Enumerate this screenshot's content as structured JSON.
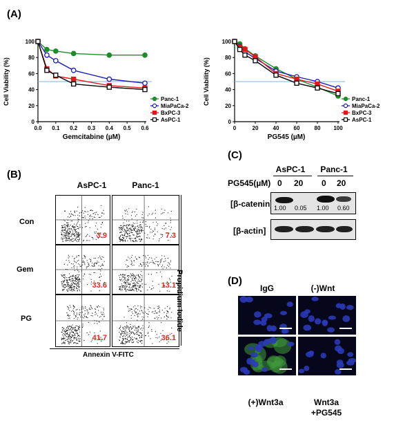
{
  "panels": {
    "a": "(A)",
    "b": "(B)",
    "c": "(C)",
    "d": "(D)"
  },
  "chart_data": [
    {
      "type": "line",
      "xlabel": "Gemcitabine (µM)",
      "ylabel": "Cell Viability (%)",
      "xlim": [
        0,
        0.6
      ],
      "ylim": [
        0,
        100
      ],
      "xticks": [
        "0.0",
        "0.1",
        "0.2",
        "0.3",
        "0.4",
        "0.5",
        "0.6"
      ],
      "yticks": [
        "0",
        "20",
        "40",
        "60",
        "80",
        "100"
      ],
      "reference_line": 50,
      "x": [
        0,
        0.05,
        0.1,
        0.2,
        0.4,
        0.6
      ],
      "series": [
        {
          "name": "Panc-1",
          "color": "#1e8c2a",
          "marker": "filled-circle",
          "values": [
            100,
            90,
            88,
            85,
            83,
            83
          ]
        },
        {
          "name": "MiaPaCa-2",
          "color": "#1a1ab5",
          "marker": "open-circle",
          "values": [
            100,
            83,
            76,
            64,
            53,
            48
          ]
        },
        {
          "name": "BxPC-3",
          "color": "#e01818",
          "marker": "filled-square",
          "values": [
            100,
            66,
            57,
            53,
            45,
            42
          ]
        },
        {
          "name": "AsPC-1",
          "color": "#000000",
          "marker": "open-square",
          "values": [
            100,
            64,
            58,
            47,
            43,
            40
          ]
        }
      ]
    },
    {
      "type": "line",
      "xlabel": "PG545 (µM)",
      "ylabel": "Cell Viability (%)",
      "xlim": [
        0,
        100
      ],
      "ylim": [
        0,
        100
      ],
      "xticks": [
        "0",
        "20",
        "40",
        "60",
        "80",
        "100"
      ],
      "yticks": [
        "0",
        "20",
        "40",
        "60",
        "80",
        "100"
      ],
      "reference_line": 50,
      "x": [
        0,
        5,
        10,
        20,
        40,
        60,
        80,
        100
      ],
      "series": [
        {
          "name": "Panc-1",
          "color": "#1e8c2a",
          "marker": "filled-circle",
          "values": [
            100,
            97,
            91,
            82,
            66,
            53,
            43,
            32
          ]
        },
        {
          "name": "MiaPaCa-2",
          "color": "#1a1ab5",
          "marker": "open-circle",
          "values": [
            100,
            94,
            87,
            79,
            63,
            56,
            50,
            42
          ]
        },
        {
          "name": "BxPC-3",
          "color": "#e01818",
          "marker": "filled-square",
          "values": [
            100,
            93,
            90,
            81,
            60,
            53,
            47,
            38
          ]
        },
        {
          "name": "AsPC-1",
          "color": "#000000",
          "marker": "open-square",
          "values": [
            100,
            90,
            83,
            76,
            58,
            48,
            42,
            35
          ]
        }
      ]
    }
  ],
  "facs": {
    "columns": [
      "AsPC-1",
      "Panc-1"
    ],
    "rows": [
      {
        "label": "Con",
        "values": [
          "3.9",
          "7.3"
        ]
      },
      {
        "label": "Gem",
        "values": [
          "33.6",
          "13.1"
        ]
      },
      {
        "label": "PG",
        "values": [
          "41.7",
          "36.1"
        ]
      }
    ],
    "xlabel": "Annexin V-FITC",
    "ylabel": "Propidium Iodide"
  },
  "western": {
    "columns": [
      "AsPC-1",
      "Panc-1"
    ],
    "treatment_label": "PG545(µM)",
    "doses": [
      "0",
      "20",
      "0",
      "20"
    ],
    "rows": [
      {
        "label": "[β-catenin]",
        "values": [
          "1.00",
          "0.05",
          "1.00",
          "0.60"
        ]
      },
      {
        "label": "[β-actin]"
      }
    ]
  },
  "micro": {
    "labels": [
      "IgG",
      "(-)Wnt",
      "(+)Wnt3a",
      "Wnt3a\n+PG545"
    ],
    "label_line1_d": "Wnt3a",
    "label_line2_d": "+PG545"
  }
}
